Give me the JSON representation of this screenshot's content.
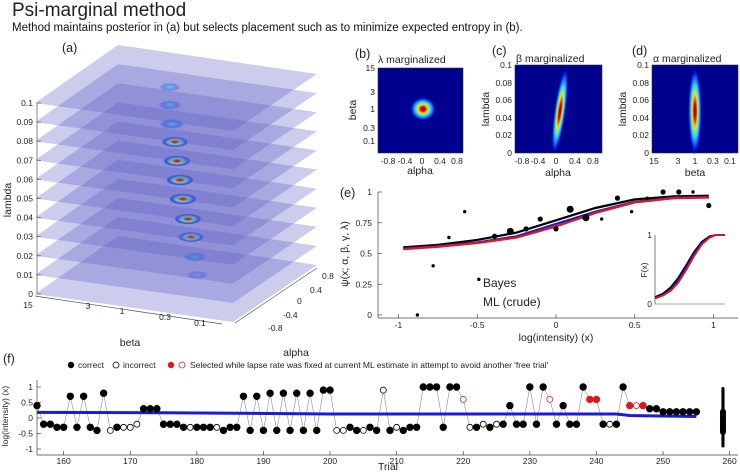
{
  "header": {
    "title": "Psi-marginal method",
    "subtitle": "Method maintains posterior in (a) but selects placement such as to minimize expected entropy in (b)."
  },
  "colors": {
    "bayes": "#1a1ad8",
    "ml": "#e01818",
    "data": "#000000",
    "heat_bg": "#00008f",
    "plane": "#6060c8"
  },
  "chart_data": [
    {
      "panel": "(a)",
      "type": "heatmap",
      "xlabel": "beta",
      "ylabel": "alpha",
      "zlabel": "lambda",
      "beta_ticks": [
        "15",
        "3",
        "1",
        "0.3",
        "0.1"
      ],
      "alpha_ticks": [
        "0.8",
        "0.4",
        "0",
        "-0.4",
        "-0.8"
      ],
      "lambda_ticks": [
        "0",
        "0.01",
        "0.02",
        "0.03",
        "0.04",
        "0.05",
        "0.06",
        "0.07",
        "0.08",
        "0.09",
        "0.1"
      ],
      "slice_peak_intensity": [
        0.25,
        0.45,
        0.75,
        0.95,
        1,
        1,
        0.95,
        0.85,
        0.65,
        0.45,
        0.25
      ]
    },
    {
      "panel": "(b)",
      "type": "heatmap",
      "title": "λ marginalized",
      "xlabel": "alpha",
      "ylabel": "beta",
      "xticks": [
        "-0.8",
        "-0.4",
        "0",
        "0.4",
        "0.8"
      ],
      "yticks": [
        "15",
        "3",
        "1",
        "0.3",
        "0.1"
      ],
      "peak": {
        "alpha": 0.05,
        "beta": 1
      }
    },
    {
      "panel": "(c)",
      "type": "heatmap",
      "title": "β marginalized",
      "xlabel": "alpha",
      "ylabel": "lambda",
      "xticks": [
        "-0.8",
        "-0.4",
        "0",
        "0.4",
        "0.8"
      ],
      "yticks": [
        "0",
        "0.02",
        "0.04",
        "0.06",
        "0.08",
        "0.1"
      ],
      "peak": {
        "alpha": 0.05,
        "lambda": 0.045
      }
    },
    {
      "panel": "(d)",
      "type": "heatmap",
      "title": "α marginalized",
      "xlabel": "beta",
      "ylabel": "lambda",
      "xticks": [
        "15",
        "3",
        "1",
        "0.3",
        "0.1"
      ],
      "yticks": [
        "0",
        "0.02",
        "0.04",
        "0.06",
        "0.08",
        "0.1"
      ],
      "peak": {
        "beta": 1,
        "lambda": 0.045
      }
    },
    {
      "panel": "(e)",
      "type": "line",
      "xlabel": "log(intensity) (x)",
      "ylabel": "ψ(x; α, β, γ, λ)",
      "xlim": [
        -1,
        1
      ],
      "ylim": [
        0,
        1
      ],
      "xticks": [
        "-1",
        "-0.5",
        "0",
        "0.5",
        "1"
      ],
      "yticks": [
        "0",
        "0.25",
        "0.5",
        "0.75",
        "1"
      ],
      "points": [
        {
          "x": -0.88,
          "y": 0,
          "size": 1
        },
        {
          "x": -0.78,
          "y": 0.4,
          "size": 1
        },
        {
          "x": -0.68,
          "y": 0.63,
          "size": 1
        },
        {
          "x": -0.58,
          "y": 0.84,
          "size": 1
        },
        {
          "x": -0.49,
          "y": 0.29,
          "size": 1
        },
        {
          "x": -0.39,
          "y": 0.64,
          "size": 2
        },
        {
          "x": -0.29,
          "y": 0.68,
          "size": 3
        },
        {
          "x": -0.19,
          "y": 0.7,
          "size": 2
        },
        {
          "x": -0.1,
          "y": 0.78,
          "size": 2
        },
        {
          "x": 0,
          "y": 0.7,
          "size": 2
        },
        {
          "x": 0.09,
          "y": 0.86,
          "size": 3
        },
        {
          "x": 0.19,
          "y": 0.79,
          "size": 3
        },
        {
          "x": 0.29,
          "y": 0.78,
          "size": 1
        },
        {
          "x": 0.39,
          "y": 0.95,
          "size": 2
        },
        {
          "x": 0.48,
          "y": 0.84,
          "size": 1
        },
        {
          "x": 0.58,
          "y": 0.95,
          "size": 1
        },
        {
          "x": 0.68,
          "y": 1,
          "size": 2
        },
        {
          "x": 0.78,
          "y": 1,
          "size": 2
        },
        {
          "x": 0.87,
          "y": 1,
          "size": 1
        },
        {
          "x": 0.97,
          "y": 0.89,
          "size": 2
        }
      ],
      "curve_x": [
        -0.97,
        -0.75,
        -0.5,
        -0.25,
        0,
        0.25,
        0.5,
        0.75,
        0.97
      ],
      "series": [
        {
          "name": "",
          "color": "#000000",
          "y": [
            0.55,
            0.57,
            0.61,
            0.67,
            0.77,
            0.87,
            0.94,
            0.965,
            0.97
          ]
        },
        {
          "name": "Bayes",
          "color": "#1a1ad8",
          "y": [
            0.54,
            0.56,
            0.59,
            0.64,
            0.74,
            0.84,
            0.92,
            0.955,
            0.96
          ]
        },
        {
          "name": "ML (crude)",
          "color": "#e01818",
          "y": [
            0.535,
            0.555,
            0.585,
            0.63,
            0.72,
            0.83,
            0.915,
            0.95,
            0.955
          ]
        }
      ],
      "inset": {
        "ylabel": "F(x)",
        "yticks": [
          "0",
          "1"
        ],
        "x": [
          -1,
          -0.75,
          -0.5,
          -0.25,
          0,
          0.25,
          0.5,
          0.75,
          0.95,
          1.25
        ],
        "series": [
          {
            "color": "#000000",
            "y": [
              0.1,
              0.15,
              0.24,
              0.38,
              0.56,
              0.75,
              0.9,
              0.98,
              1,
              1
            ]
          },
          {
            "color": "#1a1ad8",
            "y": [
              0.09,
              0.13,
              0.21,
              0.34,
              0.52,
              0.72,
              0.88,
              0.97,
              1,
              1
            ]
          },
          {
            "color": "#e01818",
            "y": [
              0.08,
              0.12,
              0.19,
              0.31,
              0.49,
              0.69,
              0.86,
              0.96,
              1,
              1
            ]
          }
        ]
      }
    },
    {
      "panel": "(f)",
      "type": "scatter",
      "xlabel": "Trial",
      "ylabel": "log(intensity) (x)",
      "xlim": [
        156,
        261
      ],
      "ylim": [
        -1.15,
        1.15
      ],
      "xticks": [
        "160",
        "170",
        "180",
        "190",
        "200",
        "210",
        "220",
        "230",
        "240",
        "250",
        "260"
      ],
      "yticks": [
        "-1",
        "-0.5",
        "0",
        "0.5",
        "1"
      ],
      "legend": {
        "correct": "correct",
        "incorrect": "incorrect",
        "fixed": "Selected while lapse rate was fixed at current ML estimate in attempt to avoid another 'free trial'"
      },
      "trial_start": 156,
      "values": [
        0.4,
        -0.2,
        -0.2,
        -0.3,
        -0.3,
        0.7,
        -0.3,
        0.7,
        -0.3,
        -0.4,
        0.8,
        -0.4,
        -0.3,
        -0.3,
        -0.3,
        -0.2,
        0.3,
        0.3,
        0.3,
        -0.2,
        -0.2,
        -0.2,
        -0.3,
        -0.3,
        -0.3,
        -0.3,
        -0.3,
        -0.3,
        -0.4,
        -0.3,
        -0.3,
        0.7,
        -0.4,
        0.7,
        -0.4,
        0.8,
        -0.4,
        0.8,
        -0.4,
        0.8,
        -0.4,
        0.8,
        -0.4,
        0.9,
        0.9,
        -0.4,
        -0.4,
        -0.3,
        -0.4,
        -0.4,
        -0.3,
        -0.4,
        0.9,
        -0.4,
        -0.3,
        -0.4,
        -0.3,
        -0.3,
        1,
        1,
        1,
        -0.3,
        1,
        1,
        0.6,
        -0.3,
        -0.3,
        -0.2,
        -0.3,
        -0.2,
        -0.2,
        0.4,
        -0.2,
        -0.2,
        1,
        -0.2,
        1,
        0.6,
        -0.2,
        0.4,
        -0.2,
        -0.2,
        1,
        0.6,
        0.6,
        -0.2,
        -0.2,
        -0.2,
        1,
        0.4,
        0.4,
        0.4,
        0.3,
        0.3,
        0.2,
        0.2,
        0.2,
        0.2,
        0.2,
        0.2
      ],
      "response": "cccccccccccicii iccccccciccciccccccccccccccccciiccicciciccccccccciicicicccccccicccccccciccciccccccccccc",
      "fixed_trials": [
        220,
        233,
        239,
        240,
        245,
        246,
        247
      ],
      "estimate_line": {
        "trials": [
          156,
          175,
          200,
          243,
          245,
          255
        ],
        "values": [
          0.18,
          0.17,
          0.13,
          0.13,
          0.08,
          0.05
        ]
      }
    }
  ]
}
